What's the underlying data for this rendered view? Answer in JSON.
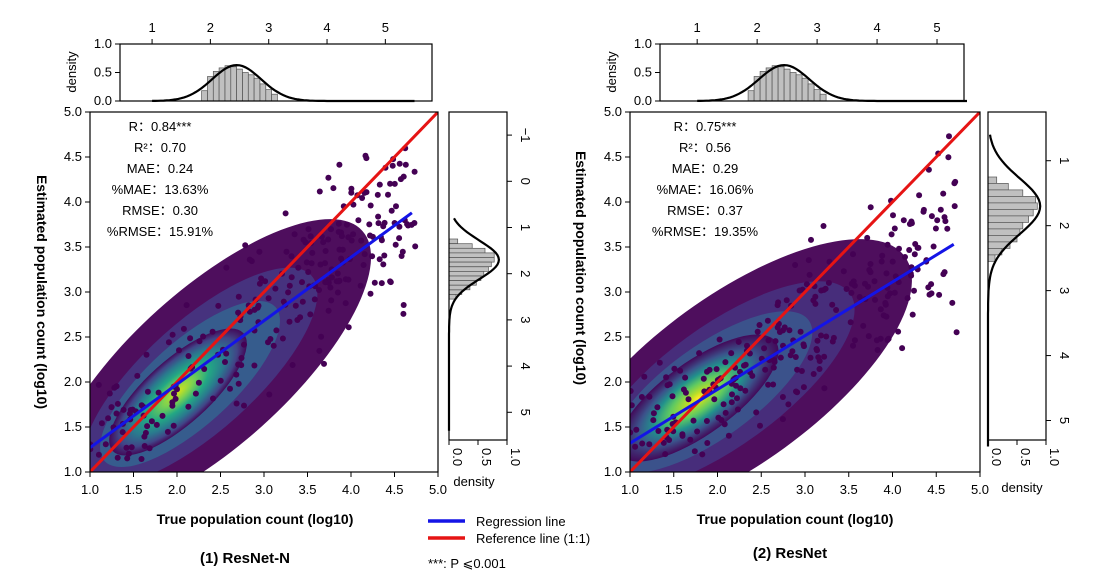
{
  "figure": {
    "legend": {
      "regression_label": "Regression line",
      "reference_label": "Reference line (1:1)",
      "regression_color": "#1414e6",
      "reference_color": "#e61414"
    },
    "footnote": "***: P ⩽0.001"
  },
  "chart_data": [
    {
      "type": "scatter",
      "caption": "(1) ResNet-N",
      "xlabel": "True population count (log10)",
      "ylabel": "Estimated population count (log10)",
      "xlim": [
        1.0,
        5.0
      ],
      "ylim": [
        1.0,
        5.0
      ],
      "x_ticks": [
        "1.0",
        "1.5",
        "2.0",
        "2.5",
        "3.0",
        "3.5",
        "4.0",
        "4.5",
        "5.0"
      ],
      "y_ticks": [
        "1.0",
        "1.5",
        "2.0",
        "2.5",
        "3.0",
        "3.5",
        "4.0",
        "4.5",
        "5.0"
      ],
      "stats": [
        {
          "label": "R：",
          "value": "0.84***"
        },
        {
          "label": "R²：",
          "value": "0.70"
        },
        {
          "label": "MAE：",
          "value": "0.24"
        },
        {
          "label": "%MAE：",
          "value": "13.63%"
        },
        {
          "label": "RMSE：",
          "value": "0.30"
        },
        {
          "label": "%RMSE：",
          "value": "15.91%"
        }
      ],
      "regression_line": {
        "x": [
          1.0,
          4.7
        ],
        "y": [
          1.27,
          3.88
        ]
      },
      "reference_line": {
        "x": [
          1.0,
          5.0
        ],
        "y": [
          1.0,
          5.0
        ]
      },
      "top_marginal": {
        "ylabel": "density",
        "ylim": [
          0.0,
          1.0
        ],
        "y_ticks": [
          "0.0",
          "0.5",
          "1.0"
        ],
        "x_ticks": [
          "1",
          "2",
          "3",
          "4",
          "5"
        ],
        "bins": [
          {
            "x": 1.9,
            "d": 0.18
          },
          {
            "x": 2.0,
            "d": 0.43
          },
          {
            "x": 2.1,
            "d": 0.52
          },
          {
            "x": 2.2,
            "d": 0.58
          },
          {
            "x": 2.3,
            "d": 0.62
          },
          {
            "x": 2.4,
            "d": 0.6
          },
          {
            "x": 2.5,
            "d": 0.56
          },
          {
            "x": 2.6,
            "d": 0.5
          },
          {
            "x": 2.7,
            "d": 0.46
          },
          {
            "x": 2.8,
            "d": 0.4
          },
          {
            "x": 2.9,
            "d": 0.3
          },
          {
            "x": 3.0,
            "d": 0.2
          },
          {
            "x": 3.1,
            "d": 0.12
          }
        ],
        "kde": {
          "mean": 2.45,
          "sd": 0.42,
          "peak": 0.63,
          "range": [
            1.0,
            5.5
          ]
        }
      },
      "side_marginal": {
        "xlabel": "density",
        "xlim": [
          0.0,
          1.0
        ],
        "x_ticks": [
          "0.0",
          "0.5",
          "1.0"
        ],
        "y_ticks": [
          "−1",
          "0",
          "1",
          "2",
          "3",
          "4",
          "5"
        ],
        "bins": [
          {
            "y": 1.3,
            "d": 0.15
          },
          {
            "y": 1.4,
            "d": 0.4
          },
          {
            "y": 1.5,
            "d": 0.62
          },
          {
            "y": 1.6,
            "d": 0.78
          },
          {
            "y": 1.7,
            "d": 0.78
          },
          {
            "y": 1.8,
            "d": 0.73
          },
          {
            "y": 1.9,
            "d": 0.68
          },
          {
            "y": 2.0,
            "d": 0.6
          },
          {
            "y": 2.1,
            "d": 0.55
          },
          {
            "y": 2.2,
            "d": 0.47
          },
          {
            "y": 2.3,
            "d": 0.36
          },
          {
            "y": 2.4,
            "d": 0.22
          },
          {
            "y": 2.5,
            "d": 0.12
          }
        ],
        "kde": {
          "mean": 1.7,
          "sd": 0.42,
          "peak": 0.86,
          "range": [
            0.8,
            5.4
          ]
        }
      }
    },
    {
      "type": "scatter",
      "caption": "(2) ResNet",
      "xlabel": "True population count (log10)",
      "ylabel": "Estimated population count (log10)",
      "xlim": [
        1.0,
        5.0
      ],
      "ylim": [
        1.0,
        5.0
      ],
      "x_ticks": [
        "1.0",
        "1.5",
        "2.0",
        "2.5",
        "3.0",
        "3.5",
        "4.0",
        "4.5",
        "5.0"
      ],
      "y_ticks": [
        "1.0",
        "1.5",
        "2.0",
        "2.5",
        "3.0",
        "3.5",
        "4.0",
        "4.5",
        "5.0"
      ],
      "stats": [
        {
          "label": "R：",
          "value": "0.75***"
        },
        {
          "label": "R²：",
          "value": "0.56"
        },
        {
          "label": "MAE：",
          "value": "0.29"
        },
        {
          "label": "%MAE：",
          "value": "16.06%"
        },
        {
          "label": "RMSE：",
          "value": "0.37"
        },
        {
          "label": "%RMSE：",
          "value": "19.35%"
        }
      ],
      "regression_line": {
        "x": [
          1.0,
          4.7
        ],
        "y": [
          1.32,
          3.53
        ]
      },
      "reference_line": {
        "x": [
          1.0,
          5.0
        ],
        "y": [
          1.0,
          5.0
        ]
      },
      "top_marginal": {
        "ylabel": "density",
        "ylim": [
          0.0,
          1.0
        ],
        "y_ticks": [
          "0.0",
          "0.5",
          "1.0"
        ],
        "x_ticks": [
          "1",
          "2",
          "3",
          "4",
          "5"
        ],
        "bins": [
          {
            "x": 1.9,
            "d": 0.18
          },
          {
            "x": 2.0,
            "d": 0.43
          },
          {
            "x": 2.1,
            "d": 0.52
          },
          {
            "x": 2.2,
            "d": 0.58
          },
          {
            "x": 2.3,
            "d": 0.62
          },
          {
            "x": 2.4,
            "d": 0.6
          },
          {
            "x": 2.5,
            "d": 0.56
          },
          {
            "x": 2.6,
            "d": 0.5
          },
          {
            "x": 2.7,
            "d": 0.46
          },
          {
            "x": 2.8,
            "d": 0.4
          },
          {
            "x": 2.9,
            "d": 0.3
          },
          {
            "x": 3.0,
            "d": 0.2
          },
          {
            "x": 3.1,
            "d": 0.12
          }
        ],
        "kde": {
          "mean": 2.45,
          "sd": 0.42,
          "peak": 0.63,
          "range": [
            1.0,
            5.5
          ]
        }
      },
      "side_marginal": {
        "xlabel": "density",
        "xlim": [
          0.0,
          1.0
        ],
        "x_ticks": [
          "0.0",
          "0.5",
          "1.0"
        ],
        "y_ticks": [
          "1",
          "2",
          "3",
          "4",
          "5"
        ],
        "bins": [
          {
            "y": 1.3,
            "d": 0.15
          },
          {
            "y": 1.4,
            "d": 0.35
          },
          {
            "y": 1.5,
            "d": 0.6
          },
          {
            "y": 1.6,
            "d": 0.82
          },
          {
            "y": 1.7,
            "d": 0.85
          },
          {
            "y": 1.8,
            "d": 0.78
          },
          {
            "y": 1.9,
            "d": 0.7
          },
          {
            "y": 2.0,
            "d": 0.6
          },
          {
            "y": 2.1,
            "d": 0.55
          },
          {
            "y": 2.2,
            "d": 0.5
          },
          {
            "y": 2.3,
            "d": 0.38
          },
          {
            "y": 2.4,
            "d": 0.24
          },
          {
            "y": 2.5,
            "d": 0.12
          }
        ],
        "kde": {
          "mean": 1.7,
          "sd": 0.43,
          "peak": 0.9,
          "range": [
            0.6,
            5.4
          ]
        }
      }
    }
  ]
}
